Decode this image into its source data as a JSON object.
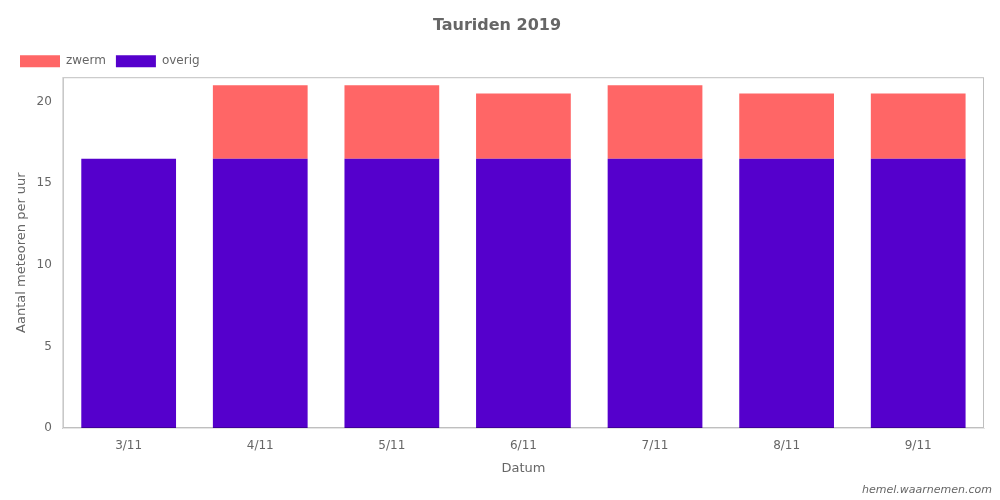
{
  "chart_data": {
    "type": "bar",
    "title": "Tauriden 2019",
    "xlabel": "Datum",
    "ylabel": "Aantal meteoren per uur",
    "categories": [
      "3/11",
      "4/11",
      "5/11",
      "6/11",
      "7/11",
      "8/11",
      "9/11"
    ],
    "series": [
      {
        "name": "overig",
        "color": "#5500cc",
        "values": [
          16.5,
          16.5,
          16.5,
          16.5,
          16.5,
          16.5,
          16.5
        ]
      },
      {
        "name": "zwerm",
        "color": "#ff6666",
        "values": [
          0.0,
          4.5,
          4.5,
          4.0,
          4.5,
          4.0,
          4.0
        ]
      }
    ],
    "stacked": true,
    "ylim": [
      0,
      21.5
    ],
    "yticks": [
      0,
      5,
      10,
      15,
      20
    ],
    "grid": false,
    "legend": "upper left",
    "annotations": [
      "hemel.waarnemen.com"
    ]
  }
}
